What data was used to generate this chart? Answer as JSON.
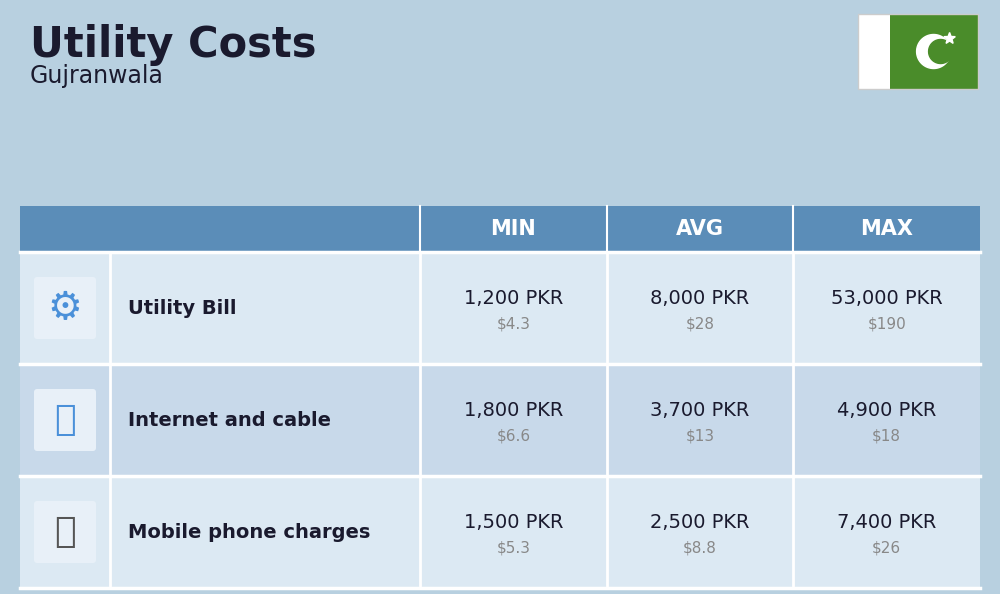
{
  "title": "Utility Costs",
  "subtitle": "Gujranwala",
  "background_color": "#b8d0e0",
  "header_bg_color": "#5b8db8",
  "header_text_color": "#ffffff",
  "row_bg_color_odd": "#dce9f3",
  "row_bg_color_even": "#c8d9ea",
  "table_border_color": "#ffffff",
  "col_headers": [
    "MIN",
    "AVG",
    "MAX"
  ],
  "rows": [
    {
      "label": "Utility Bill",
      "min_pkr": "1,200 PKR",
      "min_usd": "$4.3",
      "avg_pkr": "8,000 PKR",
      "avg_usd": "$28",
      "max_pkr": "53,000 PKR",
      "max_usd": "$190"
    },
    {
      "label": "Internet and cable",
      "min_pkr": "1,800 PKR",
      "min_usd": "$6.6",
      "avg_pkr": "3,700 PKR",
      "avg_usd": "$13",
      "max_pkr": "4,900 PKR",
      "max_usd": "$18"
    },
    {
      "label": "Mobile phone charges",
      "min_pkr": "1,500 PKR",
      "min_usd": "$5.3",
      "avg_pkr": "2,500 PKR",
      "avg_usd": "$8.8",
      "max_pkr": "7,400 PKR",
      "max_usd": "$26"
    }
  ],
  "title_fontsize": 30,
  "subtitle_fontsize": 17,
  "label_fontsize": 14,
  "value_fontsize": 14,
  "usd_fontsize": 11,
  "header_fontsize": 15,
  "flag_green": "#4a8c2a",
  "flag_white": "#ffffff"
}
